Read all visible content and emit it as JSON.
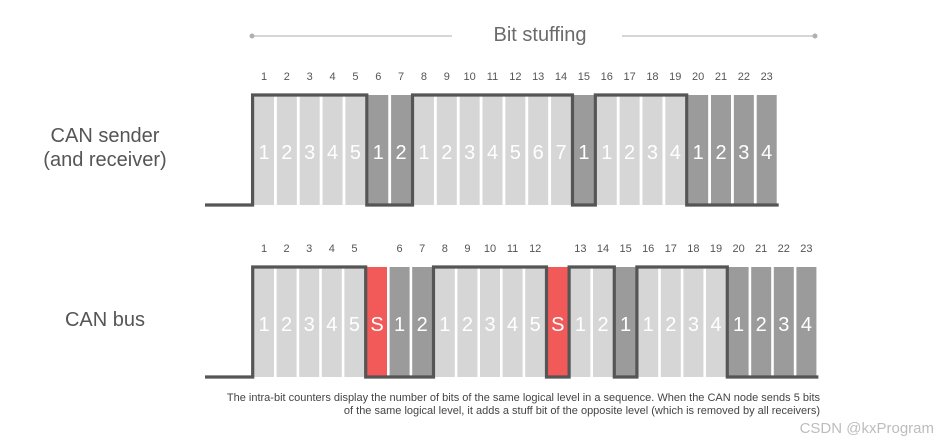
{
  "title": "Bit stuffing",
  "rows": [
    {
      "label_lines": [
        "CAN sender",
        "(and receiver)"
      ],
      "bit_numbers": [
        "1",
        "2",
        "3",
        "4",
        "5",
        "6",
        "7",
        "8",
        "9",
        "10",
        "11",
        "12",
        "13",
        "14",
        "15",
        "16",
        "17",
        "18",
        "19",
        "20",
        "21",
        "22",
        "23"
      ],
      "cells": [
        {
          "text": "1",
          "level": "high"
        },
        {
          "text": "2",
          "level": "high"
        },
        {
          "text": "3",
          "level": "high"
        },
        {
          "text": "4",
          "level": "high"
        },
        {
          "text": "5",
          "level": "high"
        },
        {
          "text": "1",
          "level": "low"
        },
        {
          "text": "2",
          "level": "low"
        },
        {
          "text": "1",
          "level": "high"
        },
        {
          "text": "2",
          "level": "high"
        },
        {
          "text": "3",
          "level": "high"
        },
        {
          "text": "4",
          "level": "high"
        },
        {
          "text": "5",
          "level": "high"
        },
        {
          "text": "6",
          "level": "high"
        },
        {
          "text": "7",
          "level": "high"
        },
        {
          "text": "1",
          "level": "low"
        },
        {
          "text": "1",
          "level": "high"
        },
        {
          "text": "2",
          "level": "high"
        },
        {
          "text": "3",
          "level": "high"
        },
        {
          "text": "4",
          "level": "high"
        },
        {
          "text": "1",
          "level": "low"
        },
        {
          "text": "2",
          "level": "low"
        },
        {
          "text": "3",
          "level": "low"
        },
        {
          "text": "4",
          "level": "low"
        }
      ]
    },
    {
      "label_lines": [
        "CAN bus"
      ],
      "bit_numbers": [
        "1",
        "2",
        "3",
        "4",
        "5",
        "",
        "6",
        "7",
        "8",
        "9",
        "10",
        "11",
        "12",
        "",
        "13",
        "14",
        "15",
        "16",
        "17",
        "18",
        "19",
        "20",
        "21",
        "22",
        "23"
      ],
      "cells": [
        {
          "text": "1",
          "level": "high"
        },
        {
          "text": "2",
          "level": "high"
        },
        {
          "text": "3",
          "level": "high"
        },
        {
          "text": "4",
          "level": "high"
        },
        {
          "text": "5",
          "level": "high"
        },
        {
          "text": "S",
          "level": "stuff"
        },
        {
          "text": "1",
          "level": "low"
        },
        {
          "text": "2",
          "level": "low"
        },
        {
          "text": "1",
          "level": "high"
        },
        {
          "text": "2",
          "level": "high"
        },
        {
          "text": "3",
          "level": "high"
        },
        {
          "text": "4",
          "level": "high"
        },
        {
          "text": "5",
          "level": "high"
        },
        {
          "text": "S",
          "level": "stuff"
        },
        {
          "text": "1",
          "level": "high"
        },
        {
          "text": "2",
          "level": "high"
        },
        {
          "text": "1",
          "level": "low"
        },
        {
          "text": "1",
          "level": "high"
        },
        {
          "text": "2",
          "level": "high"
        },
        {
          "text": "3",
          "level": "high"
        },
        {
          "text": "4",
          "level": "high"
        },
        {
          "text": "1",
          "level": "low"
        },
        {
          "text": "2",
          "level": "low"
        },
        {
          "text": "3",
          "level": "low"
        },
        {
          "text": "4",
          "level": "low"
        }
      ]
    }
  ],
  "caption_lines": [
    "The intra-bit counters display the number of bits of the same logical level in a sequence. When the CAN node sends 5 bits",
    "of the same logical level, it adds a stuff bit of the opposite level (which is removed by all receivers)"
  ],
  "watermark": "CSDN @kxProgram",
  "colors": {
    "high": "#d6d6d6",
    "low": "#9b9b9b",
    "stuff": "#f25a5a",
    "line": "#555555",
    "number": "#555555",
    "cell_text": "#ffffff"
  }
}
